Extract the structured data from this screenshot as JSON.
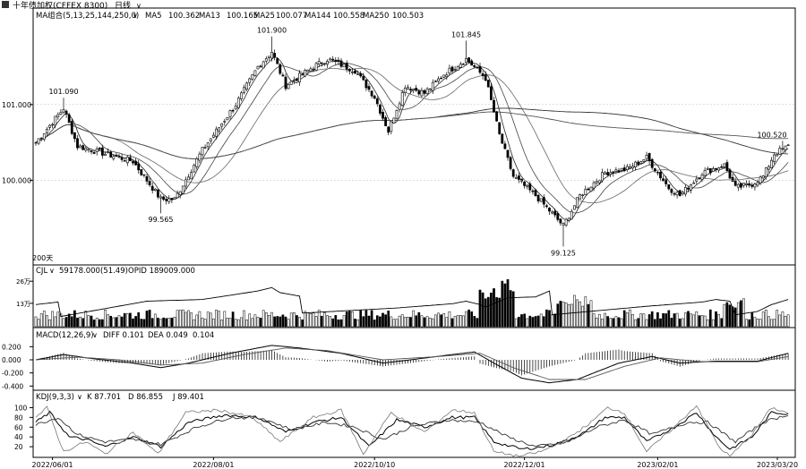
{
  "header": {
    "title": "十年债加权(CFFEX 8300)",
    "period": "日线",
    "ma_label": "MA组合(5,13,25,144,250,0)",
    "ma_values": [
      {
        "name": "MA5",
        "value": "100.362"
      },
      {
        "name": "MA13",
        "value": "100.165"
      },
      {
        "name": "MA25",
        "value": "100.077"
      },
      {
        "name": "MA144",
        "value": "100.558"
      },
      {
        "name": "MA250",
        "value": "100.503"
      }
    ]
  },
  "panels": {
    "vol": {
      "label": "CJL",
      "values": "59178.000(51.49)",
      "extra": "OPID 189009.000"
    },
    "macd": {
      "label": "MACD(12,26,9)",
      "diff": "DIFF 0.101",
      "dea": "DEA 0.049",
      "macd": "0.104"
    },
    "kdj": {
      "label": "KDJ(9,3,3)",
      "k": "K 87.701",
      "d": "D 86.855",
      "j": "J 89.401"
    }
  },
  "chart_data": [
    {
      "type": "candlestick",
      "name": "price",
      "ylim": [
        99.0,
        102.05
      ],
      "yticks": [
        100.0,
        101.0
      ],
      "ytick_labels": [
        "100.000",
        "101.000"
      ],
      "marker": "200天",
      "annotations": [
        {
          "label": "101.090",
          "value": 101.09,
          "index": 10
        },
        {
          "label": "99.565",
          "value": 99.565,
          "index": 45
        },
        {
          "label": "101.900",
          "value": 101.9,
          "index": 85
        },
        {
          "label": "101.845",
          "value": 101.845,
          "index": 155
        },
        {
          "label": "99.125",
          "value": 99.125,
          "index": 190
        },
        {
          "label": "100.520",
          "value": 100.52,
          "index": 269
        }
      ],
      "close_keypoints": [
        [
          0,
          100.5
        ],
        [
          10,
          100.95
        ],
        [
          15,
          100.45
        ],
        [
          25,
          100.35
        ],
        [
          35,
          100.25
        ],
        [
          45,
          99.75
        ],
        [
          50,
          99.75
        ],
        [
          60,
          100.4
        ],
        [
          72,
          101.0
        ],
        [
          80,
          101.5
        ],
        [
          85,
          101.7
        ],
        [
          90,
          101.25
        ],
        [
          100,
          101.5
        ],
        [
          105,
          101.6
        ],
        [
          115,
          101.45
        ],
        [
          122,
          101.1
        ],
        [
          127,
          100.65
        ],
        [
          133,
          101.25
        ],
        [
          140,
          101.15
        ],
        [
          147,
          101.4
        ],
        [
          155,
          101.6
        ],
        [
          162,
          101.35
        ],
        [
          167,
          100.6
        ],
        [
          172,
          100.05
        ],
        [
          180,
          99.8
        ],
        [
          190,
          99.4
        ],
        [
          196,
          99.8
        ],
        [
          205,
          100.1
        ],
        [
          213,
          100.15
        ],
        [
          220,
          100.3
        ],
        [
          228,
          99.9
        ],
        [
          232,
          99.8
        ],
        [
          240,
          100.1
        ],
        [
          248,
          100.2
        ],
        [
          252,
          99.9
        ],
        [
          258,
          99.95
        ],
        [
          262,
          100.05
        ],
        [
          266,
          100.35
        ],
        [
          271,
          100.45
        ]
      ],
      "x_labels": [
        {
          "index": 6,
          "label": "2022/06/01"
        },
        {
          "index": 64,
          "label": "2022/08/01"
        },
        {
          "index": 122,
          "label": "2022/10/10"
        },
        {
          "index": 176,
          "label": "2022/12/01"
        },
        {
          "index": 224,
          "label": "2023/02/01"
        },
        {
          "index": 270,
          "label": "2023/03/20"
        }
      ]
    },
    {
      "type": "bar",
      "name": "volume",
      "ylim": [
        0,
        300000
      ],
      "yticks": [
        137500,
        267500
      ],
      "ytick_labels": [
        "13万",
        "26万"
      ],
      "oi_keypoints": [
        [
          0,
          130000
        ],
        [
          8,
          145000
        ],
        [
          9,
          60000
        ],
        [
          40,
          150000
        ],
        [
          60,
          160000
        ],
        [
          80,
          210000
        ],
        [
          85,
          230000
        ],
        [
          88,
          200000
        ],
        [
          95,
          180000
        ],
        [
          96,
          80000
        ],
        [
          130,
          110000
        ],
        [
          150,
          135000
        ],
        [
          155,
          150000
        ],
        [
          160,
          130000
        ],
        [
          162,
          115000
        ],
        [
          170,
          170000
        ],
        [
          180,
          175000
        ],
        [
          185,
          210000
        ],
        [
          186,
          70000
        ],
        [
          220,
          120000
        ],
        [
          240,
          145000
        ],
        [
          245,
          160000
        ],
        [
          250,
          150000
        ],
        [
          252,
          70000
        ],
        [
          260,
          90000
        ],
        [
          265,
          130000
        ],
        [
          271,
          160000
        ]
      ],
      "spike_ranges": [
        [
          160,
          172,
          280000
        ],
        [
          188,
          200,
          195000
        ],
        [
          248,
          255,
          170000
        ]
      ]
    },
    {
      "type": "macd",
      "name": "macd",
      "ylim": [
        -0.45,
        0.3
      ],
      "yticks": [
        -0.4,
        -0.2,
        0.0,
        0.2
      ],
      "ytick_labels": [
        "-0.400",
        "-0.200",
        "0.000",
        "0.200"
      ],
      "diff_keypoints": [
        [
          0,
          0.0
        ],
        [
          10,
          0.08
        ],
        [
          20,
          0.02
        ],
        [
          35,
          -0.05
        ],
        [
          45,
          -0.12
        ],
        [
          55,
          -0.05
        ],
        [
          70,
          0.1
        ],
        [
          85,
          0.22
        ],
        [
          95,
          0.18
        ],
        [
          110,
          0.1
        ],
        [
          125,
          -0.05
        ],
        [
          135,
          0.0
        ],
        [
          150,
          0.08
        ],
        [
          158,
          0.12
        ],
        [
          165,
          -0.05
        ],
        [
          175,
          -0.28
        ],
        [
          185,
          -0.35
        ],
        [
          195,
          -0.3
        ],
        [
          210,
          -0.05
        ],
        [
          222,
          0.05
        ],
        [
          232,
          -0.05
        ],
        [
          245,
          -0.02
        ],
        [
          260,
          -0.02
        ],
        [
          271,
          0.1
        ]
      ],
      "dea_keypoints": [
        [
          0,
          0.0
        ],
        [
          15,
          0.04
        ],
        [
          30,
          0.0
        ],
        [
          45,
          -0.08
        ],
        [
          60,
          -0.05
        ],
        [
          75,
          0.08
        ],
        [
          90,
          0.18
        ],
        [
          105,
          0.14
        ],
        [
          125,
          0.0
        ],
        [
          145,
          0.05
        ],
        [
          160,
          0.1
        ],
        [
          172,
          -0.12
        ],
        [
          185,
          -0.3
        ],
        [
          198,
          -0.3
        ],
        [
          212,
          -0.1
        ],
        [
          225,
          0.03
        ],
        [
          240,
          -0.03
        ],
        [
          260,
          -0.03
        ],
        [
          271,
          0.05
        ]
      ]
    },
    {
      "type": "kdj",
      "name": "kdj",
      "ylim": [
        0,
        110
      ],
      "yticks": [
        20,
        40,
        60,
        80,
        100
      ],
      "ytick_labels": [
        "20",
        "40",
        "60",
        "80",
        "100"
      ],
      "k_keypoints": [
        [
          0,
          70
        ],
        [
          5,
          90
        ],
        [
          12,
          40
        ],
        [
          18,
          35
        ],
        [
          25,
          20
        ],
        [
          35,
          40
        ],
        [
          45,
          20
        ],
        [
          55,
          70
        ],
        [
          68,
          85
        ],
        [
          80,
          80
        ],
        [
          90,
          50
        ],
        [
          100,
          70
        ],
        [
          110,
          80
        ],
        [
          120,
          20
        ],
        [
          130,
          75
        ],
        [
          140,
          60
        ],
        [
          150,
          80
        ],
        [
          158,
          80
        ],
        [
          165,
          30
        ],
        [
          175,
          15
        ],
        [
          183,
          20
        ],
        [
          190,
          30
        ],
        [
          198,
          50
        ],
        [
          205,
          80
        ],
        [
          212,
          80
        ],
        [
          220,
          30
        ],
        [
          230,
          60
        ],
        [
          238,
          90
        ],
        [
          245,
          40
        ],
        [
          250,
          15
        ],
        [
          258,
          40
        ],
        [
          265,
          90
        ],
        [
          271,
          88
        ]
      ],
      "d_keypoints": [
        [
          0,
          65
        ],
        [
          8,
          80
        ],
        [
          15,
          45
        ],
        [
          25,
          30
        ],
        [
          35,
          35
        ],
        [
          45,
          25
        ],
        [
          58,
          60
        ],
        [
          70,
          80
        ],
        [
          82,
          78
        ],
        [
          92,
          55
        ],
        [
          105,
          70
        ],
        [
          115,
          60
        ],
        [
          125,
          35
        ],
        [
          135,
          60
        ],
        [
          148,
          75
        ],
        [
          160,
          70
        ],
        [
          170,
          40
        ],
        [
          180,
          20
        ],
        [
          192,
          30
        ],
        [
          202,
          60
        ],
        [
          212,
          75
        ],
        [
          222,
          45
        ],
        [
          235,
          70
        ],
        [
          242,
          70
        ],
        [
          252,
          30
        ],
        [
          262,
          70
        ],
        [
          271,
          86
        ]
      ],
      "j_keypoints": [
        [
          0,
          80
        ],
        [
          4,
          100
        ],
        [
          10,
          10
        ],
        [
          18,
          30
        ],
        [
          25,
          5
        ],
        [
          35,
          50
        ],
        [
          44,
          5
        ],
        [
          54,
          90
        ],
        [
          66,
          95
        ],
        [
          78,
          80
        ],
        [
          88,
          30
        ],
        [
          100,
          80
        ],
        [
          110,
          95
        ],
        [
          118,
          5
        ],
        [
          128,
          90
        ],
        [
          140,
          50
        ],
        [
          150,
          95
        ],
        [
          158,
          90
        ],
        [
          165,
          10
        ],
        [
          174,
          0
        ],
        [
          182,
          10
        ],
        [
          190,
          30
        ],
        [
          200,
          70
        ],
        [
          206,
          100
        ],
        [
          212,
          90
        ],
        [
          220,
          10
        ],
        [
          230,
          60
        ],
        [
          238,
          105
        ],
        [
          246,
          20
        ],
        [
          250,
          0
        ],
        [
          258,
          45
        ],
        [
          265,
          100
        ],
        [
          271,
          89
        ]
      ]
    }
  ]
}
